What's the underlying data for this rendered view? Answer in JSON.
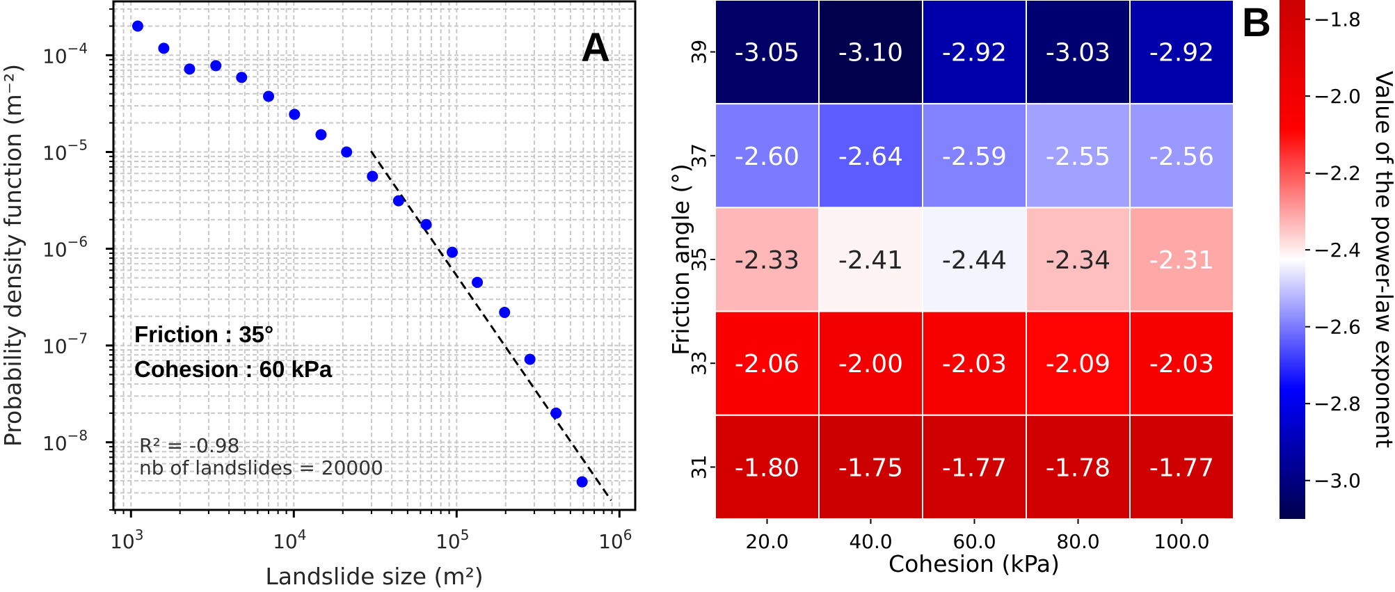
{
  "chart_data": [
    {
      "panel": "A",
      "type": "scatter",
      "xscale": "log",
      "yscale": "log",
      "xlabel": "Landslide size (m²)",
      "ylabel": "Probability density function (m⁻²)",
      "xlim": [
        780,
        1250000
      ],
      "ylim": [
        2e-09,
        0.00036
      ],
      "grid": true,
      "grid_style": "dashed minor+major",
      "xticks": [
        {
          "value": 1000,
          "base": "10",
          "exp": "3"
        },
        {
          "value": 10000,
          "base": "10",
          "exp": "4"
        },
        {
          "value": 100000,
          "base": "10",
          "exp": "5"
        },
        {
          "value": 1000000,
          "base": "10",
          "exp": "6"
        }
      ],
      "yticks": [
        {
          "value": 0.0001,
          "base": "10",
          "exp": "−4"
        },
        {
          "value": 1e-05,
          "base": "10",
          "exp": "−5"
        },
        {
          "value": 1e-06,
          "base": "10",
          "exp": "−6"
        },
        {
          "value": 1e-07,
          "base": "10",
          "exp": "−7"
        },
        {
          "value": 1e-08,
          "base": "10",
          "exp": "−8"
        }
      ],
      "series": [
        {
          "name": "PDF",
          "color": "#0000ff",
          "x": [
            1100,
            1590,
            2290,
            3320,
            4780,
            7000,
            10100,
            14700,
            21100,
            30400,
            44000,
            65000,
            94000,
            134000,
            197000,
            282000,
            408000,
            590000
          ],
          "y": [
            0.0002,
            0.000118,
            7.2e-05,
            7.8e-05,
            5.9e-05,
            3.76e-05,
            2.45e-05,
            1.51e-05,
            1e-05,
            5.6e-06,
            3.13e-06,
            1.78e-06,
            9.2e-07,
            4.5e-07,
            2.2e-07,
            7.2e-08,
            2e-08,
            3.9e-09
          ]
        }
      ],
      "fit_line": {
        "style": "dashed",
        "color": "#000000",
        "x": [
          29800,
          890000
        ],
        "y": [
          1.02e-05,
          2.5e-09
        ]
      },
      "annotations": {
        "friction": "Friction : 35°",
        "cohesion": "Cohesion : 60 kPa",
        "r2": "R² = -0.98",
        "count": "nb of landslides = 20000"
      },
      "panel_label": "A"
    },
    {
      "panel": "B",
      "type": "heatmap",
      "xlabel": "Cohesion (kPa)",
      "ylabel": "Friction angle (°)",
      "x_categories": [
        "20.0",
        "40.0",
        "60.0",
        "80.0",
        "100.0"
      ],
      "y_categories": [
        "39",
        "37",
        "35",
        "33",
        "31"
      ],
      "values": [
        [
          -3.05,
          -3.1,
          -2.92,
          -3.03,
          -2.92
        ],
        [
          -2.6,
          -2.64,
          -2.59,
          -2.55,
          -2.56
        ],
        [
          -2.33,
          -2.41,
          -2.44,
          -2.34,
          -2.31
        ],
        [
          -2.06,
          -2.0,
          -2.03,
          -2.09,
          -2.03
        ],
        [
          -1.8,
          -1.75,
          -1.77,
          -1.78,
          -1.77
        ]
      ],
      "colormap": "seismic (red = high, white = center, navy = low)",
      "colormap_stops": [
        "#00004c",
        "#0000ff",
        "#ffffff",
        "#ff0000",
        "#cc0000"
      ],
      "vmin": -3.1,
      "vmax": -1.75,
      "colorbar": {
        "label": "Value of the power-law exponent",
        "ticks": [
          -1.8,
          -2.0,
          -2.2,
          -2.4,
          -2.6,
          -2.8,
          -3.0
        ],
        "tick_labels": [
          "−1.8",
          "−2.0",
          "−2.2",
          "−2.4",
          "−2.6",
          "−2.8",
          "−3.0"
        ]
      },
      "panel_label": "B"
    }
  ]
}
